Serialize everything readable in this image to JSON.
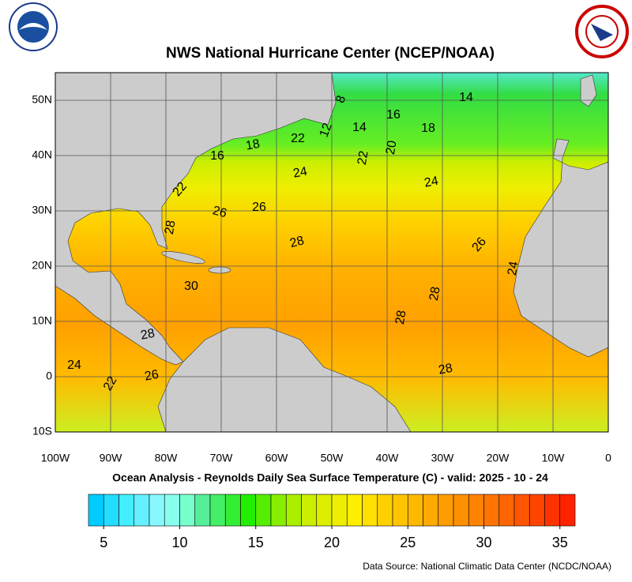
{
  "header": {
    "title": "NWS National Hurricane Center (NCEP/NOAA)"
  },
  "map": {
    "lonlim": [
      -100,
      0
    ],
    "latlim": [
      -10,
      55
    ],
    "lat_ticks": [
      {
        "value": 50,
        "label": "50N"
      },
      {
        "value": 40,
        "label": "40N"
      },
      {
        "value": 30,
        "label": "30N"
      },
      {
        "value": 20,
        "label": "20N"
      },
      {
        "value": 10,
        "label": "10N"
      },
      {
        "value": 0,
        "label": "0"
      },
      {
        "value": -10,
        "label": "10S"
      }
    ],
    "lon_ticks": [
      {
        "value": -100,
        "label": "100W"
      },
      {
        "value": -90,
        "label": "90W"
      },
      {
        "value": -80,
        "label": "80W"
      },
      {
        "value": -70,
        "label": "70W"
      },
      {
        "value": -60,
        "label": "60W"
      },
      {
        "value": -50,
        "label": "50W"
      },
      {
        "value": -40,
        "label": "40W"
      },
      {
        "value": -30,
        "label": "30W"
      },
      {
        "value": -20,
        "label": "20W"
      },
      {
        "value": -10,
        "label": "10W"
      },
      {
        "value": 0,
        "label": "0"
      }
    ],
    "grid": true,
    "contour_labels": [
      8,
      14,
      16,
      12,
      14,
      18,
      22,
      18,
      16,
      20,
      22,
      24,
      24,
      22,
      26,
      26,
      28,
      28,
      26,
      24,
      30,
      28,
      28,
      28,
      24,
      26,
      28,
      22
    ]
  },
  "subtitle": "Ocean Analysis - Reynolds Daily Sea Surface Temperature (C) - valid: 2025 - 10 - 24",
  "colorbar": {
    "range": [
      4,
      36
    ],
    "ticks": [
      5,
      10,
      15,
      20,
      25,
      30,
      35
    ],
    "colors": [
      "#00ccff",
      "#22ddff",
      "#44eeff",
      "#66f0ff",
      "#88f8ff",
      "#88ffee",
      "#77ffcc",
      "#55ee99",
      "#44ee66",
      "#33ee33",
      "#22ee00",
      "#55ee00",
      "#88ee00",
      "#aaee00",
      "#ccee00",
      "#ddee00",
      "#eeee00",
      "#ffee00",
      "#ffe000",
      "#ffd000",
      "#ffc400",
      "#ffb800",
      "#ffaa00",
      "#ff9d00",
      "#ff9000",
      "#ff8200",
      "#ff7400",
      "#ff6600",
      "#ff5500",
      "#ff4400",
      "#ff3300",
      "#ff2200"
    ]
  },
  "footer": {
    "source": "Data Source: National Climatic Data Center (NCDC/NOAA)"
  }
}
